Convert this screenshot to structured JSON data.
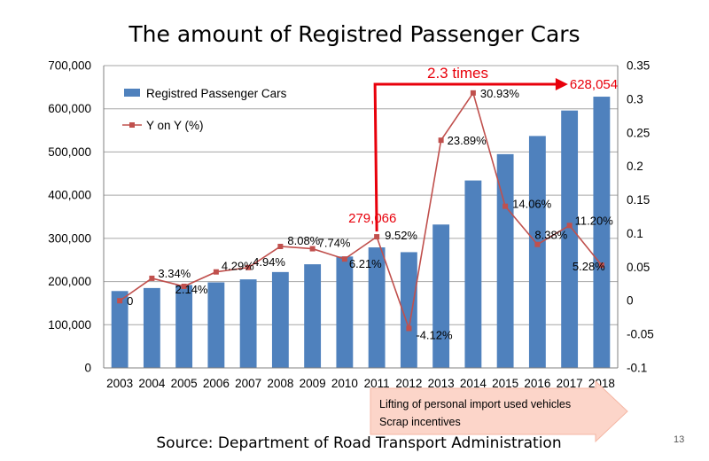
{
  "slide": {
    "title": "The amount of Registred Passenger Cars",
    "source": "Source: Department of Road Transport  Administration",
    "page_number": "13",
    "callout": {
      "line1": "Lifting of personal import used vehicles",
      "line2": "Scrap incentives",
      "fill": "#fcd5c9"
    }
  },
  "chart_data": {
    "type": "bar",
    "categories": [
      "2003",
      "2004",
      "2005",
      "2006",
      "2007",
      "2008",
      "2009",
      "2010",
      "2011",
      "2012",
      "2013",
      "2014",
      "2015",
      "2016",
      "2017",
      "2018"
    ],
    "series": [
      {
        "name": "Registred Passenger Cars",
        "kind": "bar",
        "axis": "left",
        "color": "#4f81bd",
        "values": [
          178000,
          185000,
          192000,
          198000,
          205000,
          222000,
          240000,
          258000,
          279066,
          268000,
          332000,
          434000,
          495000,
          537000,
          596000,
          628054
        ]
      },
      {
        "name": "Y on Y (%)",
        "kind": "line",
        "axis": "right",
        "color": "#c0504d",
        "values": [
          0,
          0.0334,
          0.0214,
          0.0429,
          0.0494,
          0.0808,
          0.0774,
          0.0621,
          0.0952,
          -0.0412,
          0.2389,
          0.3093,
          0.1406,
          0.0838,
          0.112,
          0.0528
        ],
        "labels": [
          "0",
          "3.34%",
          "2.14%",
          "4.29%",
          "4.94%",
          "8.08%",
          "7.74%",
          "6.21%",
          "9.52%",
          "-4.12%",
          "23.89%",
          "30.93%",
          "14.06%",
          "8.38%",
          "11.20%",
          "5.28%"
        ]
      }
    ],
    "y_left": {
      "ylim": [
        0,
        700000
      ],
      "ticks": [
        "0",
        "100,000",
        "200,000",
        "300,000",
        "400,000",
        "500,000",
        "600,000",
        "700,000"
      ]
    },
    "y_right": {
      "ylim": [
        -0.1,
        0.35
      ],
      "ticks": [
        "-0.1",
        "-0.05",
        "0",
        "0.05",
        "0.1",
        "0.15",
        "0.2",
        "0.25",
        "0.3",
        "0.35"
      ]
    },
    "grid": true,
    "legend_position": "top-left",
    "annotations": {
      "highlight_2011": "279,066",
      "highlight_2018": "628,054",
      "growth": "2.3 times",
      "color": "#e8000b"
    }
  }
}
